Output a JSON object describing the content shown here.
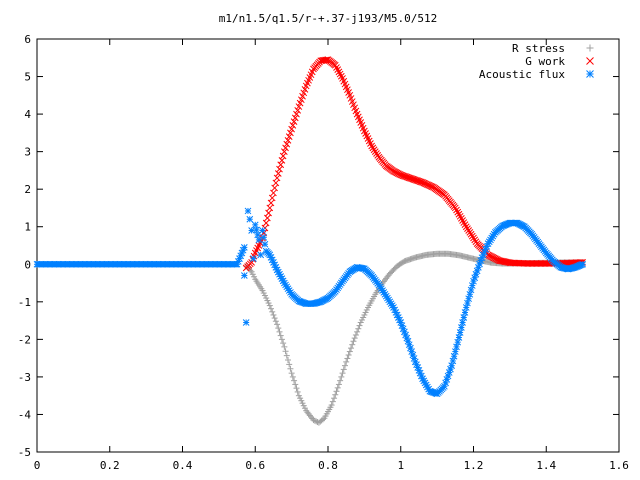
{
  "chart_data": {
    "type": "scatter",
    "title": "m1/n1.5/q1.5/r-+.37-j193/M5.0/512",
    "xlabel": "",
    "ylabel": "",
    "xlim": [
      0,
      1.6
    ],
    "ylim": [
      -5,
      6
    ],
    "xticks": [
      0,
      0.2,
      0.4,
      0.6,
      0.8,
      1,
      1.2,
      1.4,
      1.6
    ],
    "yticks": [
      -5,
      -4,
      -3,
      -2,
      -1,
      0,
      1,
      2,
      3,
      4,
      5,
      6
    ],
    "grid": false,
    "legend_position": "top-right",
    "series": [
      {
        "name": "R stress",
        "marker": "plus",
        "color": "#a0a0a0",
        "points": [
          [
            0.575,
            -0.05
          ],
          [
            0.59,
            -0.2
          ],
          [
            0.6,
            -0.4
          ],
          [
            0.62,
            -0.7
          ],
          [
            0.64,
            -1.1
          ],
          [
            0.66,
            -1.6
          ],
          [
            0.68,
            -2.2
          ],
          [
            0.7,
            -2.9
          ],
          [
            0.72,
            -3.5
          ],
          [
            0.74,
            -3.9
          ],
          [
            0.76,
            -4.15
          ],
          [
            0.775,
            -4.22
          ],
          [
            0.79,
            -4.1
          ],
          [
            0.81,
            -3.75
          ],
          [
            0.83,
            -3.2
          ],
          [
            0.85,
            -2.6
          ],
          [
            0.87,
            -2.05
          ],
          [
            0.89,
            -1.55
          ],
          [
            0.91,
            -1.15
          ],
          [
            0.93,
            -0.8
          ],
          [
            0.95,
            -0.5
          ],
          [
            0.97,
            -0.25
          ],
          [
            0.99,
            -0.05
          ],
          [
            1.01,
            0.08
          ],
          [
            1.04,
            0.18
          ],
          [
            1.07,
            0.25
          ],
          [
            1.1,
            0.28
          ],
          [
            1.13,
            0.28
          ],
          [
            1.16,
            0.24
          ],
          [
            1.19,
            0.17
          ],
          [
            1.22,
            0.1
          ],
          [
            1.25,
            0.04
          ],
          [
            1.28,
            0.02
          ],
          [
            1.31,
            0.02
          ],
          [
            1.35,
            0.03
          ],
          [
            1.4,
            0.04
          ],
          [
            1.45,
            0.05
          ],
          [
            1.5,
            0.05
          ]
        ]
      },
      {
        "name": "G work",
        "marker": "cross",
        "color": "#ff0000",
        "points": [
          [
            0.575,
            -0.1
          ],
          [
            0.59,
            0.05
          ],
          [
            0.6,
            0.3
          ],
          [
            0.62,
            0.7
          ],
          [
            0.64,
            1.5
          ],
          [
            0.66,
            2.3
          ],
          [
            0.68,
            3.0
          ],
          [
            0.7,
            3.6
          ],
          [
            0.72,
            4.2
          ],
          [
            0.74,
            4.75
          ],
          [
            0.76,
            5.2
          ],
          [
            0.78,
            5.42
          ],
          [
            0.8,
            5.45
          ],
          [
            0.82,
            5.3
          ],
          [
            0.84,
            4.95
          ],
          [
            0.86,
            4.5
          ],
          [
            0.88,
            4.0
          ],
          [
            0.9,
            3.55
          ],
          [
            0.92,
            3.15
          ],
          [
            0.94,
            2.85
          ],
          [
            0.96,
            2.62
          ],
          [
            0.98,
            2.48
          ],
          [
            1.0,
            2.38
          ],
          [
            1.03,
            2.28
          ],
          [
            1.06,
            2.18
          ],
          [
            1.09,
            2.05
          ],
          [
            1.12,
            1.85
          ],
          [
            1.15,
            1.5
          ],
          [
            1.18,
            1.0
          ],
          [
            1.21,
            0.55
          ],
          [
            1.24,
            0.25
          ],
          [
            1.27,
            0.1
          ],
          [
            1.3,
            0.04
          ],
          [
            1.35,
            0.02
          ],
          [
            1.4,
            0.02
          ],
          [
            1.45,
            0.03
          ],
          [
            1.5,
            0.05
          ]
        ]
      },
      {
        "name": "Acoustic flux",
        "marker": "asterisk",
        "color": "#0080ff",
        "points": [
          [
            0.0,
            0.0
          ],
          [
            0.05,
            0.0
          ],
          [
            0.1,
            0.0
          ],
          [
            0.15,
            0.0
          ],
          [
            0.2,
            0.0
          ],
          [
            0.25,
            0.0
          ],
          [
            0.3,
            0.0
          ],
          [
            0.35,
            0.0
          ],
          [
            0.4,
            0.0
          ],
          [
            0.45,
            0.0
          ],
          [
            0.5,
            0.0
          ],
          [
            0.55,
            0.0
          ],
          [
            0.57,
            0.45
          ],
          [
            0.57,
            -0.3
          ],
          [
            0.575,
            -1.55
          ],
          [
            0.58,
            1.42
          ],
          [
            0.585,
            1.2
          ],
          [
            0.59,
            0.9
          ],
          [
            0.595,
            0.15
          ],
          [
            0.6,
            1.05
          ],
          [
            0.61,
            0.65
          ],
          [
            0.615,
            0.25
          ],
          [
            0.62,
            0.9
          ],
          [
            0.63,
            0.35
          ],
          [
            0.64,
            0.25
          ],
          [
            0.66,
            -0.15
          ],
          [
            0.68,
            -0.5
          ],
          [
            0.7,
            -0.8
          ],
          [
            0.72,
            -0.98
          ],
          [
            0.74,
            -1.05
          ],
          [
            0.76,
            -1.05
          ],
          [
            0.78,
            -1.0
          ],
          [
            0.8,
            -0.9
          ],
          [
            0.82,
            -0.72
          ],
          [
            0.84,
            -0.45
          ],
          [
            0.86,
            -0.2
          ],
          [
            0.88,
            -0.08
          ],
          [
            0.9,
            -0.12
          ],
          [
            0.92,
            -0.3
          ],
          [
            0.94,
            -0.55
          ],
          [
            0.96,
            -0.85
          ],
          [
            0.98,
            -1.15
          ],
          [
            1.0,
            -1.55
          ],
          [
            1.02,
            -2.05
          ],
          [
            1.04,
            -2.6
          ],
          [
            1.06,
            -3.05
          ],
          [
            1.08,
            -3.38
          ],
          [
            1.1,
            -3.45
          ],
          [
            1.12,
            -3.25
          ],
          [
            1.14,
            -2.7
          ],
          [
            1.16,
            -1.95
          ],
          [
            1.18,
            -1.15
          ],
          [
            1.2,
            -0.45
          ],
          [
            1.22,
            0.1
          ],
          [
            1.24,
            0.55
          ],
          [
            1.26,
            0.85
          ],
          [
            1.28,
            1.02
          ],
          [
            1.3,
            1.1
          ],
          [
            1.32,
            1.1
          ],
          [
            1.34,
            1.0
          ],
          [
            1.36,
            0.8
          ],
          [
            1.38,
            0.55
          ],
          [
            1.4,
            0.3
          ],
          [
            1.42,
            0.08
          ],
          [
            1.44,
            -0.08
          ],
          [
            1.46,
            -0.13
          ],
          [
            1.48,
            -0.08
          ],
          [
            1.5,
            0.0
          ]
        ]
      }
    ]
  }
}
